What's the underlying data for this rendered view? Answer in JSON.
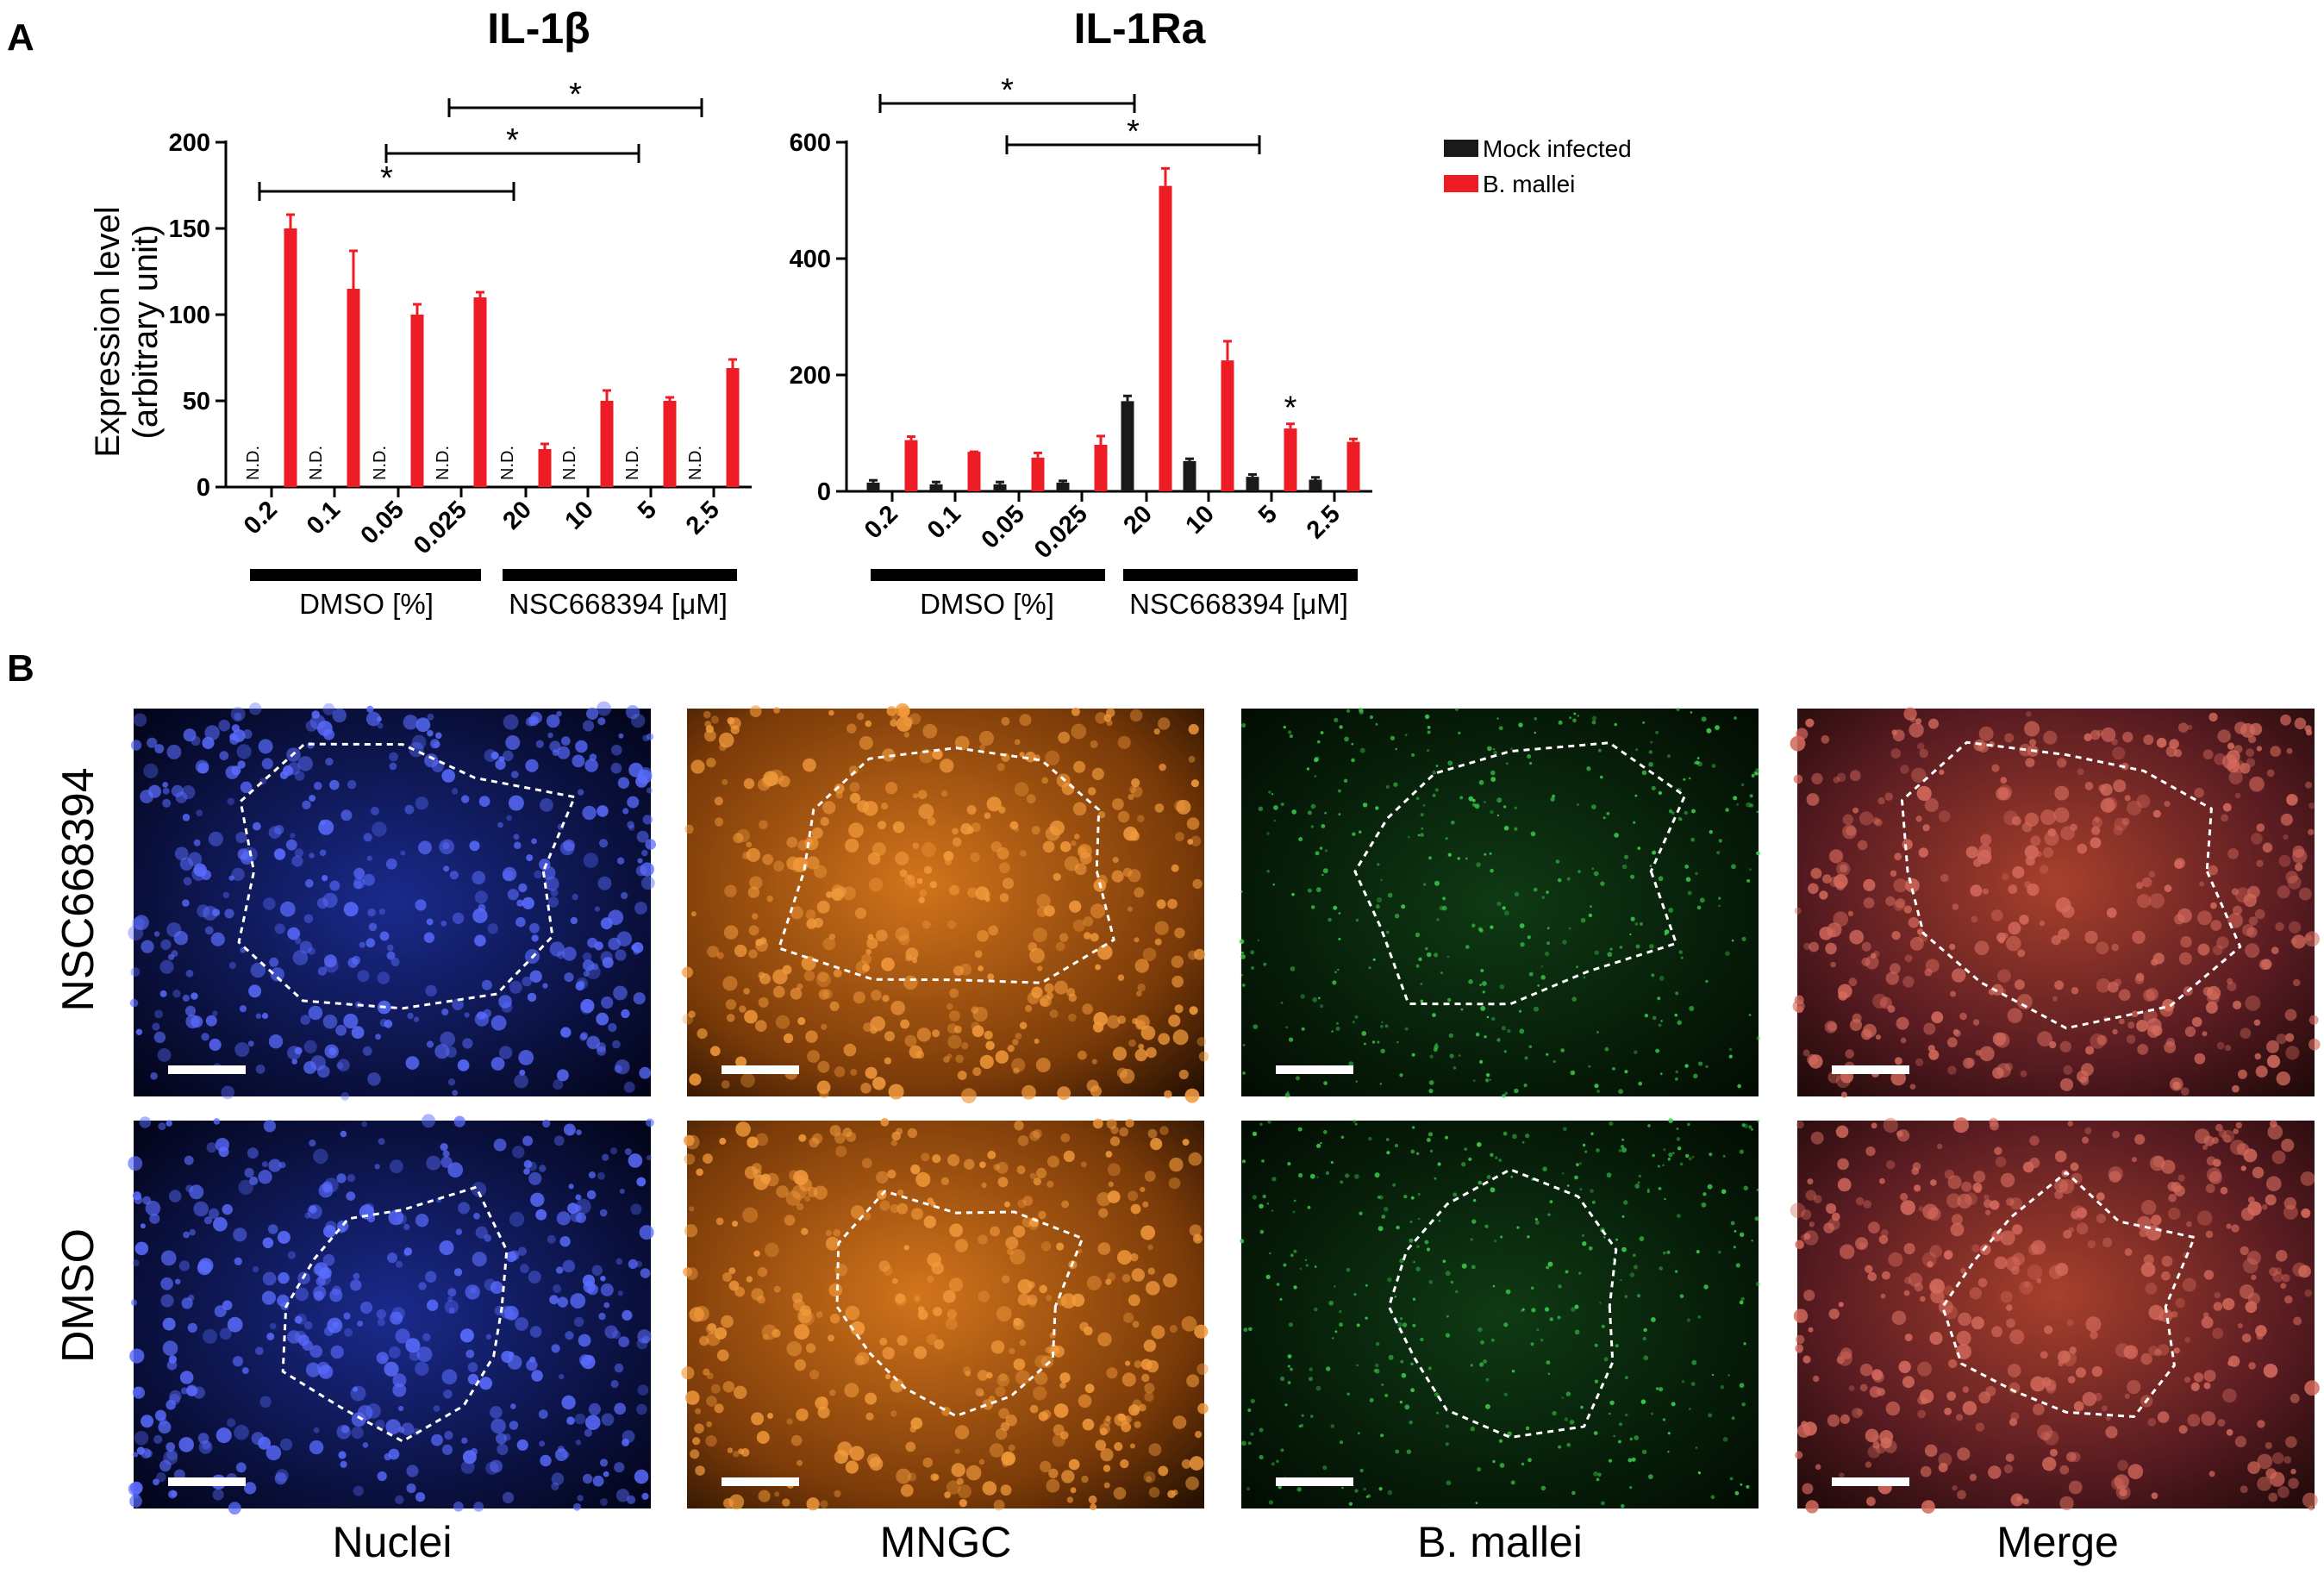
{
  "panel_labels": {
    "a": "A",
    "b": "B"
  },
  "colors": {
    "mock": "#1a1a1a",
    "infected": "#ee1c24"
  },
  "legend": {
    "mock": "Mock infected",
    "infected": "B. mallei"
  },
  "group_labels": {
    "dmso": "DMSO [%]",
    "nsc": "NSC668394 [μM]"
  },
  "chart_data": [
    {
      "type": "bar",
      "title": "IL-1β",
      "ylabel_line1": "Expression level",
      "ylabel_line2": "(arbitrary unit)",
      "ylim": [
        0,
        200
      ],
      "yticks": [
        "0",
        "50",
        "100",
        "150",
        "200"
      ],
      "categories": [
        "0.2",
        "0.1",
        "0.05",
        "0.025",
        "20",
        "10",
        "5",
        "2.5"
      ],
      "groups": [
        {
          "label": "DMSO [%]",
          "categories": [
            "0.2",
            "0.1",
            "0.05",
            "0.025"
          ]
        },
        {
          "label": "NSC668394 [μM]",
          "categories": [
            "20",
            "10",
            "5",
            "2.5"
          ]
        }
      ],
      "series": [
        {
          "name": "Mock infected",
          "values": [
            null,
            null,
            null,
            null,
            null,
            null,
            null,
            null
          ],
          "labels": [
            "N.D.",
            "N.D.",
            "N.D.",
            "N.D.",
            "N.D.",
            "N.D.",
            "N.D.",
            "N.D."
          ]
        },
        {
          "name": "B. mallei",
          "values": [
            150,
            115,
            100,
            110,
            22,
            50,
            50,
            69
          ],
          "errors": [
            8,
            22,
            6,
            3,
            3,
            6,
            2,
            5
          ]
        }
      ],
      "significance": [
        {
          "from": 0,
          "to": 4,
          "label": "*"
        },
        {
          "from": 2,
          "to": 6,
          "label": "*"
        },
        {
          "from": 3,
          "to": 7,
          "label": "*"
        }
      ]
    },
    {
      "type": "bar",
      "title": "IL-1Ra",
      "ylim": [
        0,
        600
      ],
      "yticks": [
        "0",
        "200",
        "400",
        "600"
      ],
      "categories": [
        "0.2",
        "0.1",
        "0.05",
        "0.025",
        "20",
        "10",
        "5",
        "2.5"
      ],
      "groups": [
        {
          "label": "DMSO [%]",
          "categories": [
            "0.2",
            "0.1",
            "0.05",
            "0.025"
          ]
        },
        {
          "label": "NSC668394 [μM]",
          "categories": [
            "20",
            "10",
            "5",
            "2.5"
          ]
        }
      ],
      "series": [
        {
          "name": "Mock infected",
          "values": [
            15,
            12,
            12,
            15,
            155,
            52,
            25,
            20
          ],
          "errors": [
            4,
            4,
            4,
            3,
            9,
            4,
            4,
            4
          ]
        },
        {
          "name": "B. mallei",
          "values": [
            88,
            68,
            58,
            80,
            525,
            225,
            108,
            85
          ],
          "errors": [
            6,
            0,
            8,
            15,
            30,
            33,
            8,
            5
          ]
        }
      ],
      "significance": [
        {
          "from": 0,
          "to": 4,
          "label": "*"
        },
        {
          "from": 2,
          "to": 6,
          "label": "*"
        }
      ],
      "point_annotations": [
        {
          "index": 6,
          "label": "*"
        }
      ]
    }
  ],
  "micrographs": {
    "rows": [
      "NSC668394",
      "DMSO"
    ],
    "columns": [
      "Nuclei",
      "MNGC",
      "B. mallei",
      "Merge"
    ]
  }
}
